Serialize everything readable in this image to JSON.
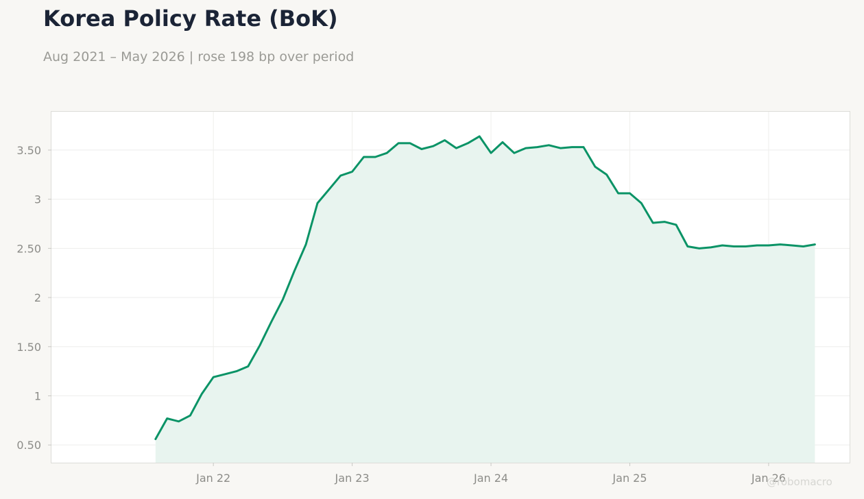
{
  "title": "Korea Policy Rate (BoK)",
  "subtitle": "Aug 2021 – May 2026 | rose 198 bp over period",
  "watermark": "@robomacro",
  "colors": {
    "line": "#0a9366",
    "fill": "#e8f4ef",
    "background": "#f8f7f4",
    "plot_background": "#ffffff",
    "grid": "#eeeeec",
    "title": "#1b2436",
    "muted": "#9a9a95"
  },
  "chart_data": {
    "type": "area",
    "x_unit": "month",
    "x": [
      "2021-08",
      "2021-09",
      "2021-10",
      "2021-11",
      "2021-12",
      "2022-01",
      "2022-02",
      "2022-03",
      "2022-04",
      "2022-05",
      "2022-06",
      "2022-07",
      "2022-08",
      "2022-09",
      "2022-10",
      "2022-11",
      "2022-12",
      "2023-01",
      "2023-02",
      "2023-03",
      "2023-04",
      "2023-05",
      "2023-06",
      "2023-07",
      "2023-08",
      "2023-09",
      "2023-10",
      "2023-11",
      "2023-12",
      "2024-01",
      "2024-02",
      "2024-03",
      "2024-04",
      "2024-05",
      "2024-06",
      "2024-07",
      "2024-08",
      "2024-09",
      "2024-10",
      "2024-11",
      "2024-12",
      "2025-01",
      "2025-02",
      "2025-03",
      "2025-04",
      "2025-05",
      "2025-06",
      "2025-07",
      "2025-08",
      "2025-09",
      "2025-10",
      "2025-11",
      "2025-12",
      "2026-01",
      "2026-02",
      "2026-03",
      "2026-04",
      "2026-05"
    ],
    "series": [
      {
        "values": [
          0.56,
          0.77,
          0.74,
          0.8,
          1.02,
          1.19,
          1.22,
          1.25,
          1.3,
          1.51,
          1.75,
          1.98,
          2.27,
          2.54,
          2.96,
          3.1,
          3.24,
          3.28,
          3.43,
          3.43,
          3.47,
          3.57,
          3.57,
          3.51,
          3.54,
          3.6,
          3.52,
          3.57,
          3.64,
          3.47,
          3.58,
          3.47,
          3.52,
          3.53,
          3.55,
          3.52,
          3.53,
          3.53,
          3.33,
          3.25,
          3.06,
          3.06,
          2.96,
          2.76,
          2.77,
          2.74,
          2.52,
          2.5,
          2.51,
          2.53,
          2.52,
          2.52,
          2.53,
          2.53,
          2.54,
          2.53,
          2.52,
          2.54
        ]
      }
    ],
    "y_ticks": [
      0.5,
      1,
      1.5,
      2,
      2.5,
      3,
      3.5
    ],
    "y_tick_labels": [
      "0.50",
      "1",
      "1.50",
      "2",
      "2.50",
      "3",
      "3.50"
    ],
    "x_ticks": [
      "2022-01",
      "2023-01",
      "2024-01",
      "2025-01",
      "2026-01"
    ],
    "x_tick_labels": [
      "Jan 22",
      "Jan 23",
      "Jan 24",
      "Jan 25",
      "Jan 26"
    ],
    "ylim": [
      0.32,
      3.89
    ],
    "xlim": [
      "2020-11",
      "2026-08"
    ],
    "grid": true,
    "xlabel": "",
    "ylabel": ""
  }
}
